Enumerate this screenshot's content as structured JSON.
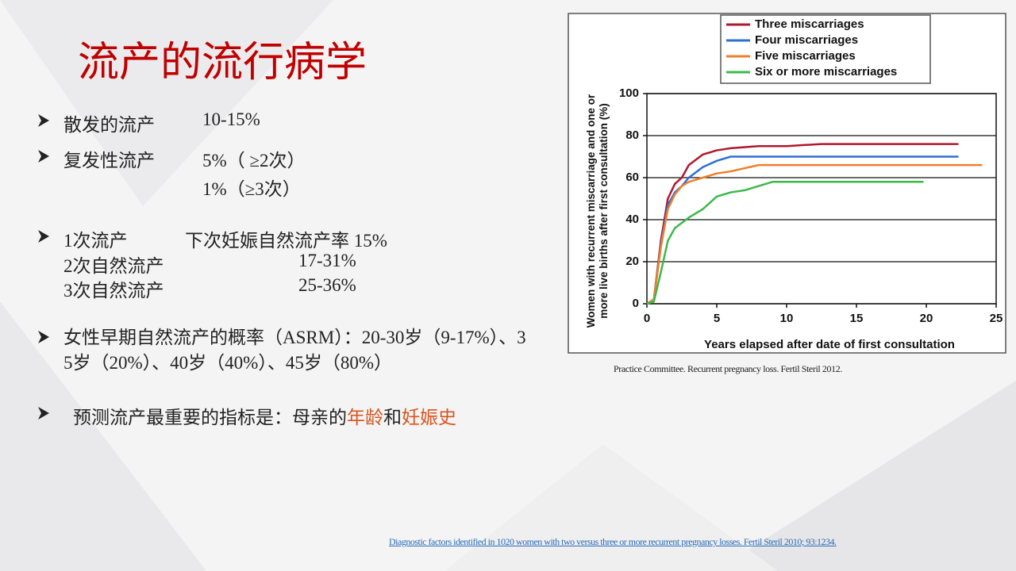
{
  "title": "流产的流行病学",
  "bullets": {
    "sporadic": {
      "label": "散发的流产",
      "value": "10-15%"
    },
    "recurrent": {
      "label": "复发性流产",
      "value_1": "5%（ ≥2次）",
      "value_2": "1%（≥3次）"
    },
    "subsequent": {
      "rows": [
        [
          "1次流产",
          "下次妊娠自然流产率 15%"
        ],
        [
          "2次自然流产",
          "17-31%"
        ],
        [
          "3次自然流产",
          "25-36%"
        ]
      ]
    },
    "asrm": "女性早期自然流产的概率（ASRM）：20-30岁（9-17%）、35岁（20%）、40岁（40%）、45岁（80%）",
    "predictor": {
      "prefix": "预测流产最重要的指标是：母亲的",
      "age": "年龄",
      "and": "和",
      "history": "妊娠史"
    }
  },
  "chart_data": {
    "type": "line",
    "y_label": "Women with recurrent miscarriage and one or more live births after first consultation (%)",
    "x_label": "Years elapsed after date of first consultation",
    "xlim": [
      0,
      25
    ],
    "xticks": [
      0,
      5,
      10,
      15,
      20,
      25
    ],
    "ylim": [
      0,
      100
    ],
    "yticks": [
      0,
      20,
      40,
      60,
      80,
      100
    ],
    "grid": true,
    "series": [
      {
        "name": "Three miscarriages",
        "color": "#b0182e",
        "x": [
          0,
          0.5,
          1,
          1.5,
          2,
          2.5,
          3,
          4,
          5,
          6,
          8,
          10,
          12.5,
          15,
          20,
          22.3
        ],
        "values": [
          0,
          2,
          30,
          50,
          57,
          60,
          66,
          71,
          73,
          74,
          75,
          75,
          76,
          76,
          76,
          76
        ]
      },
      {
        "name": "Four miscarriages",
        "color": "#2f6fd6",
        "x": [
          0,
          0.5,
          1,
          1.5,
          2,
          2.5,
          3,
          4,
          5,
          6,
          8,
          10,
          15,
          20,
          22.3
        ],
        "values": [
          0,
          2,
          28,
          47,
          53,
          56,
          60,
          65,
          68,
          70,
          70,
          70,
          70,
          70,
          70
        ]
      },
      {
        "name": "Five miscarriages",
        "color": "#f07f2a",
        "x": [
          0,
          0.5,
          1,
          1.5,
          2,
          2.5,
          3,
          4,
          5,
          6,
          8,
          10,
          15,
          20,
          24
        ],
        "values": [
          0,
          2,
          27,
          45,
          52,
          56,
          58,
          60,
          62,
          63,
          66,
          66,
          66,
          66,
          66
        ]
      },
      {
        "name": "Six or more miscarriages",
        "color": "#3cb84a",
        "x": [
          0,
          0.5,
          1,
          1.5,
          2,
          3,
          4,
          5,
          6,
          7,
          8,
          9,
          10,
          15,
          19.8
        ],
        "values": [
          0,
          1,
          15,
          30,
          36,
          41,
          45,
          51,
          53,
          54,
          56,
          58,
          58,
          58,
          58
        ]
      }
    ]
  },
  "caption": "Practice Committee. Recurrent pregnancy loss. Fertil Steril 2012.",
  "reference_link": "Diagnostic factors identified in 1020 women with two versus three or more recurrent pregnancy losses. Fertil Steril  2010; 93:1234."
}
